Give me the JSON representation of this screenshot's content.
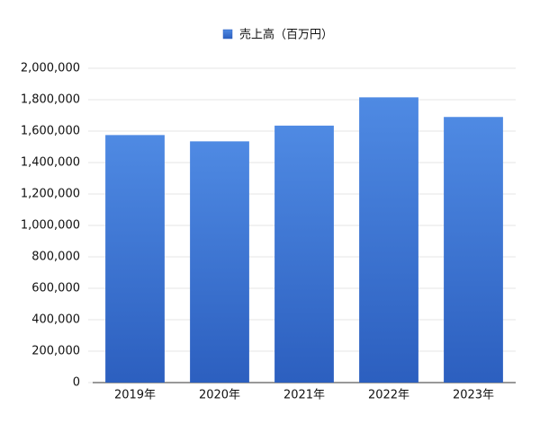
{
  "chart_data": {
    "type": "bar",
    "categories": [
      "2019年",
      "2020年",
      "2021年",
      "2022年",
      "2023年"
    ],
    "series": [
      {
        "name": "売上高（百万円）",
        "color": "#4f8ae3",
        "values": [
          1575000,
          1535000,
          1635000,
          1815000,
          1690000
        ]
      }
    ],
    "ylim": [
      0,
      2000000
    ],
    "yticks": [
      0,
      {
        "value": 200000,
        "label": "200,000"
      },
      {
        "value": 400000,
        "label": "400,000"
      },
      {
        "value": 600000,
        "label": "600,000"
      },
      {
        "value": 800000,
        "label": "800,000"
      },
      {
        "value": 1000000,
        "label": "1,000,000"
      },
      {
        "value": 1200000,
        "label": "1,200,000"
      },
      {
        "value": 1400000,
        "label": "1,400,000"
      },
      {
        "value": 1600000,
        "label": "1,600,000"
      },
      {
        "value": 1800000,
        "label": "1,800,000"
      },
      {
        "value": 2000000,
        "label": "2,000,000"
      }
    ],
    "grid": true,
    "legend": "top"
  }
}
